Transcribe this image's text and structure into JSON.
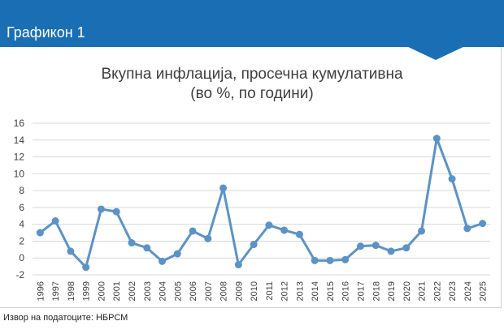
{
  "header": {
    "title": "Графикон 1"
  },
  "source": "Извор на податоците: НБРСМ",
  "colors": {
    "header": "#1a6fb4",
    "series": "#5b93c7",
    "grid": "#d9d9d9",
    "text": "#404040"
  },
  "chart_data": {
    "type": "line",
    "title": "Вкупна инфлација, просечна кумулативна",
    "subtitle": "(во %, по години)",
    "xlabel": "",
    "ylabel": "",
    "ylim": [
      -2,
      16
    ],
    "yticks": [
      -2,
      0,
      2,
      4,
      6,
      8,
      10,
      12,
      14,
      16
    ],
    "grid": true,
    "legend": "none",
    "x": [
      "1996",
      "1997",
      "1998",
      "1999",
      "2000",
      "2001",
      "2002",
      "2003",
      "2004",
      "2005",
      "2006",
      "2007",
      "2008",
      "2009",
      "2010",
      "2011",
      "2012",
      "2013",
      "2014",
      "2015",
      "2016",
      "2017",
      "2018",
      "2019",
      "2020",
      "2021",
      "2022",
      "2023",
      "2024",
      "2025"
    ],
    "series": [
      {
        "values": [
          3.0,
          4.4,
          0.8,
          -1.1,
          5.8,
          5.5,
          1.8,
          1.2,
          -0.4,
          0.5,
          3.2,
          2.3,
          8.3,
          -0.8,
          1.6,
          3.9,
          3.3,
          2.8,
          -0.3,
          -0.3,
          -0.2,
          1.4,
          1.5,
          0.8,
          1.2,
          3.2,
          14.2,
          9.4,
          3.5,
          4.1
        ]
      }
    ]
  }
}
